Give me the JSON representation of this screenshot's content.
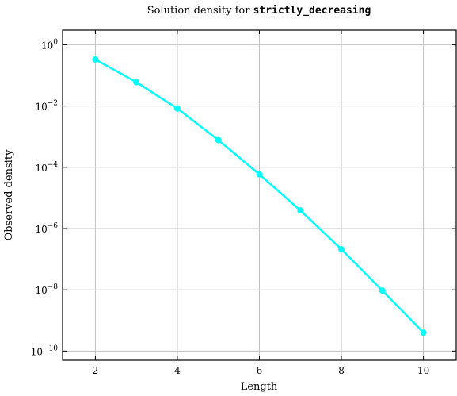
{
  "chart_data": {
    "type": "line",
    "title_prefix": "Solution density for ",
    "title_code": "strictly_decreasing",
    "xlabel": "Length",
    "ylabel": "Observed density",
    "x_ticks": [
      "2",
      "4",
      "6",
      "8",
      "10"
    ],
    "y_ticks": [
      {
        "base": "10",
        "exp": "0"
      },
      {
        "base": "10",
        "exp": "−2"
      },
      {
        "base": "10",
        "exp": "−4"
      },
      {
        "base": "10",
        "exp": "−6"
      },
      {
        "base": "10",
        "exp": "−8"
      },
      {
        "base": "10",
        "exp": "−10"
      }
    ],
    "y_scale": "log",
    "xlim": [
      1.2,
      10.8
    ],
    "ylim": [
      5e-11,
      3
    ],
    "grid": true,
    "series": [
      {
        "color": "#00FFFF",
        "x": [
          2,
          3,
          4,
          5,
          6,
          7,
          8,
          9,
          10
        ],
        "y": [
          0.33,
          0.06,
          0.0083,
          0.00077,
          5.9e-05,
          3.9e-06,
          2.1e-07,
          9.4e-09,
          4e-10
        ]
      }
    ]
  }
}
